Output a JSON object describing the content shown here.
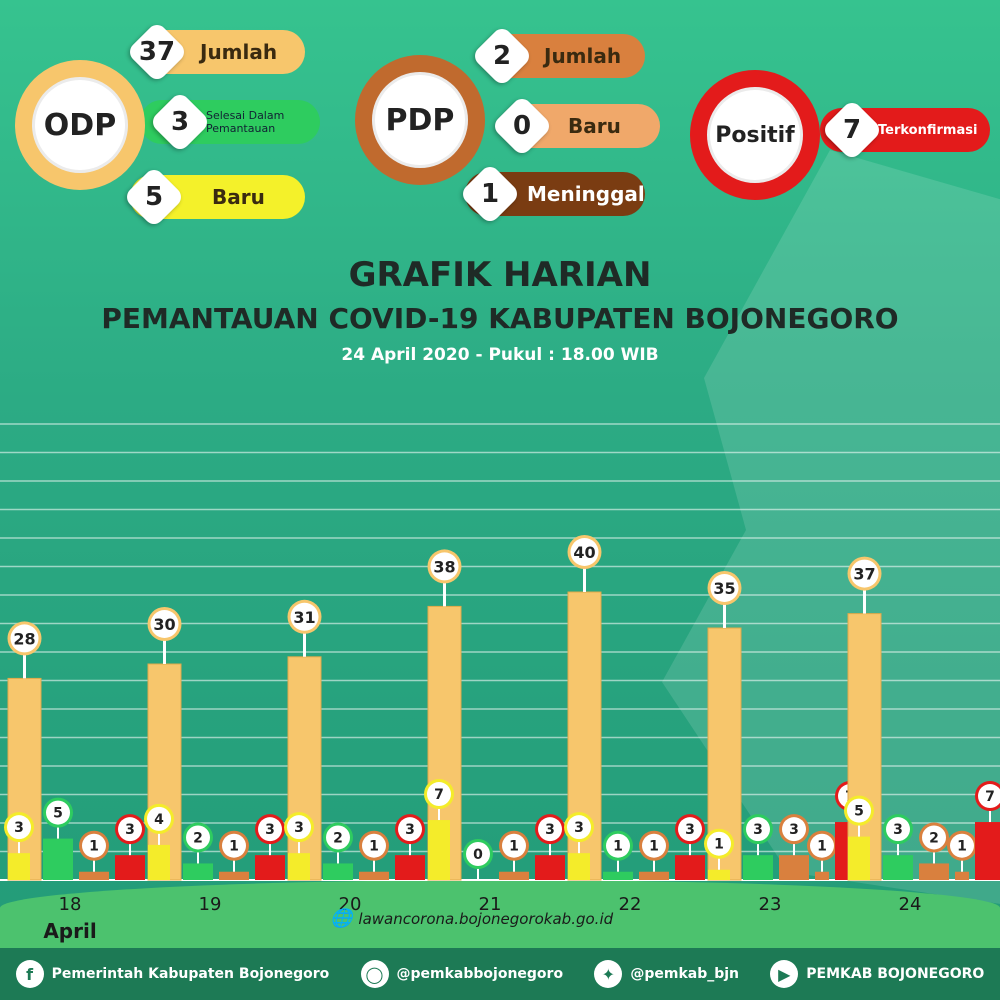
{
  "header": {
    "odp": {
      "label": "ODP",
      "jumlah": {
        "value": "37",
        "label": "Jumlah"
      },
      "selesai": {
        "value": "3",
        "label_line1": "Selesai Dalam",
        "label_line2": "Pemantauan"
      },
      "baru": {
        "value": "5",
        "label": "Baru"
      }
    },
    "pdp": {
      "label": "PDP",
      "jumlah": {
        "value": "2",
        "label": "Jumlah"
      },
      "baru": {
        "value": "0",
        "label": "Baru"
      },
      "meninggal": {
        "value": "1",
        "label": "Meninggal"
      }
    },
    "positif": {
      "label": "Positif",
      "terkonfirmasi": {
        "value": "7",
        "label": "Terkonfirmasi"
      }
    }
  },
  "title": {
    "line1": "GRAFIK HARIAN",
    "line2": "PEMANTAUAN COVID-19 KABUPATEN BOJONEGORO",
    "line3": "24 April 2020 - Pukul : 18.00 WIB"
  },
  "colors": {
    "odp_total": "#f7c66c",
    "odp_baru": "#f4ec2a",
    "selesai": "#2ecc5f",
    "pdp": "#d9803e",
    "positif": "#e31b1b"
  },
  "chart_data": {
    "type": "bar",
    "categories": [
      "18",
      "19",
      "20",
      "21",
      "22",
      "23",
      "24"
    ],
    "month_label": "April",
    "series": [
      {
        "key": "odp_total",
        "values": [
          28,
          30,
          31,
          38,
          40,
          35,
          37
        ]
      },
      {
        "key": "odp_baru",
        "values": [
          3,
          4,
          3,
          7,
          3,
          1,
          5
        ]
      },
      {
        "key": "selesai",
        "values": [
          5,
          2,
          2,
          0,
          1,
          3,
          3
        ]
      },
      {
        "key": "pdp",
        "values": [
          1,
          1,
          1,
          1,
          1,
          3,
          2
        ]
      },
      {
        "key": "pdp_extra",
        "values": [
          null,
          null,
          null,
          null,
          null,
          1,
          1
        ]
      },
      {
        "key": "positif",
        "values": [
          3,
          3,
          3,
          3,
          3,
          7,
          7
        ]
      }
    ],
    "ylim": [
      0,
      40
    ]
  },
  "footer": {
    "url": "lawancorona.bojonegorokab.go.id",
    "facebook": "Pemerintah Kabupaten Bojonegoro",
    "instagram": "@pemkabbojonegoro",
    "twitter": "@pemkab_bjn",
    "youtube": "PEMKAB BOJONEGORO"
  }
}
